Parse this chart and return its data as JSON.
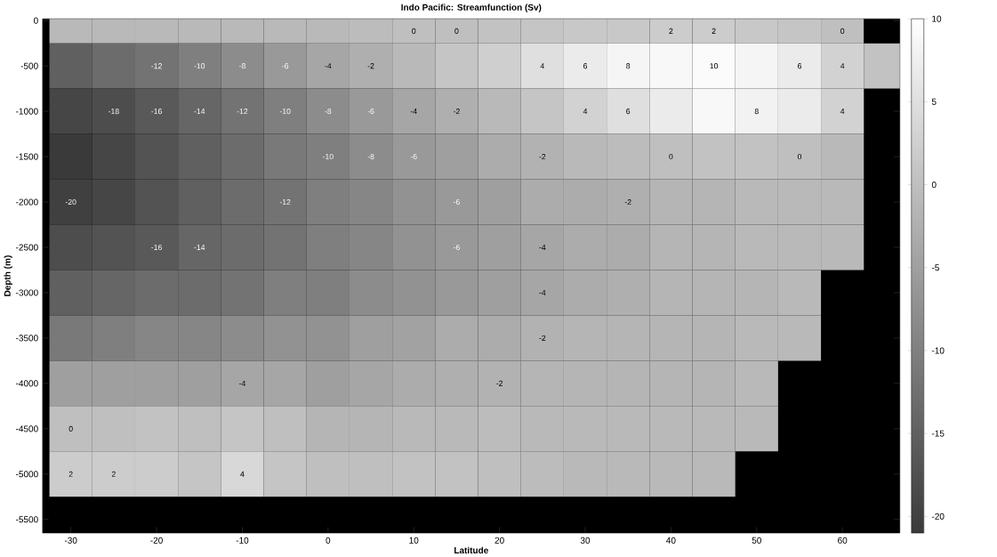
{
  "chart_data": {
    "type": "heatmap",
    "title": "Indo Pacific: Streamfunction (Sv)",
    "xlabel": "Latitude",
    "ylabel": "Depth (m)",
    "x": [
      -30,
      -25,
      -20,
      -15,
      -10,
      -5,
      0,
      5,
      10,
      15,
      20,
      25,
      30,
      35,
      40,
      45,
      50,
      55,
      60,
      65
    ],
    "y": [
      0,
      -500,
      -1000,
      -1500,
      -2000,
      -2500,
      -3000,
      -3500,
      -4000,
      -4500,
      -5000
    ],
    "cells": [
      [
        -1,
        -1,
        -1,
        -1,
        -1,
        -1,
        -1,
        -0.5,
        0,
        0,
        0.5,
        1,
        1.5,
        1.5,
        2,
        2,
        1.5,
        1,
        0,
        null
      ],
      [
        -15,
        -13,
        -12,
        -10,
        -8,
        -6,
        -4,
        -2.5,
        -1,
        1,
        2.5,
        5,
        7,
        8.5,
        9,
        9.5,
        8.5,
        7,
        3,
        0.5
      ],
      [
        -19,
        -18,
        -16,
        -14,
        -12,
        -10,
        -8,
        -6,
        -4,
        -2.5,
        -1,
        1,
        3,
        5,
        7,
        9,
        8,
        7,
        3,
        null
      ],
      [
        -21,
        -19,
        -17,
        -15,
        -13,
        -11,
        -10,
        -8,
        -6,
        -5,
        -3,
        -2,
        -1,
        -0.5,
        0,
        0.5,
        0.5,
        0,
        -1,
        null
      ],
      [
        -20,
        -19,
        -17,
        -15,
        -13,
        -12,
        -10,
        -9,
        -7,
        -6,
        -5,
        -3,
        -3,
        -2.5,
        -1.5,
        -1.5,
        -1,
        -1,
        -1,
        null
      ],
      [
        -18,
        -17,
        -16,
        -14,
        -13,
        -12,
        -10,
        -9,
        -7,
        -6,
        -5,
        -4,
        -3,
        -3,
        -1.5,
        -1.5,
        -1,
        -1,
        -1,
        null
      ],
      [
        -15,
        -14,
        -13,
        -13,
        -12,
        -10,
        -10,
        -8,
        -7,
        -6,
        -5,
        -4,
        -3,
        -2.5,
        -1.5,
        -1.5,
        -1.5,
        -1,
        null,
        null
      ],
      [
        -11,
        -10,
        -9,
        -9,
        -8,
        -7,
        -7,
        -5,
        -4.5,
        -3,
        -3,
        -2,
        -1.5,
        -1.5,
        -1.5,
        -1.5,
        -1,
        -1,
        null,
        null
      ],
      [
        -5,
        -5,
        -5,
        -5,
        -4,
        -4,
        -5,
        -4,
        -3,
        -2.5,
        -2,
        -1.5,
        -1.5,
        -1.5,
        -1.5,
        -1.5,
        -1,
        null,
        null,
        null
      ],
      [
        0,
        0,
        0.5,
        0,
        1,
        0,
        -1.5,
        -1.5,
        -1,
        -1,
        -0.5,
        -1,
        -1,
        -1,
        -1,
        -1,
        -1,
        null,
        null,
        null
      ],
      [
        2,
        2,
        2,
        1,
        4,
        1,
        0,
        0,
        0.5,
        0.5,
        0,
        -0.5,
        -1,
        -1,
        -1,
        -1,
        null,
        null,
        null,
        null
      ]
    ],
    "clim": [
      -21,
      10
    ],
    "cticks": [
      -20,
      -15,
      -10,
      -5,
      0,
      5,
      10
    ],
    "xlim": [
      -33.3,
      66.7
    ],
    "xticks": [
      -30,
      -20,
      -10,
      0,
      10,
      20,
      30,
      40,
      50,
      60
    ],
    "ylim": [
      -5650,
      20
    ],
    "yticks": [
      0,
      -500,
      -1000,
      -1500,
      -2000,
      -2500,
      -3000,
      -3500,
      -4000,
      -4500,
      -5000,
      -5500
    ],
    "annotations": [
      "-2",
      "-4",
      "-6",
      "-8",
      "-10",
      "-12",
      "-14",
      "-16",
      "-18",
      "-20",
      "-14",
      "-16",
      "-12",
      "-10",
      "-8",
      "-6",
      "-4",
      "-2",
      "0",
      "4",
      "-6",
      "2",
      "4",
      "6",
      "8",
      "10",
      "4",
      "8",
      "6",
      "4",
      "2",
      "0",
      "-2",
      "-4",
      "-6",
      "6",
      "4",
      "2",
      "-2",
      "-12",
      "-10",
      "-8",
      "-4",
      "-6",
      "-2",
      "0",
      "0",
      "2",
      "-4",
      "-2",
      "0",
      "0"
    ]
  }
}
